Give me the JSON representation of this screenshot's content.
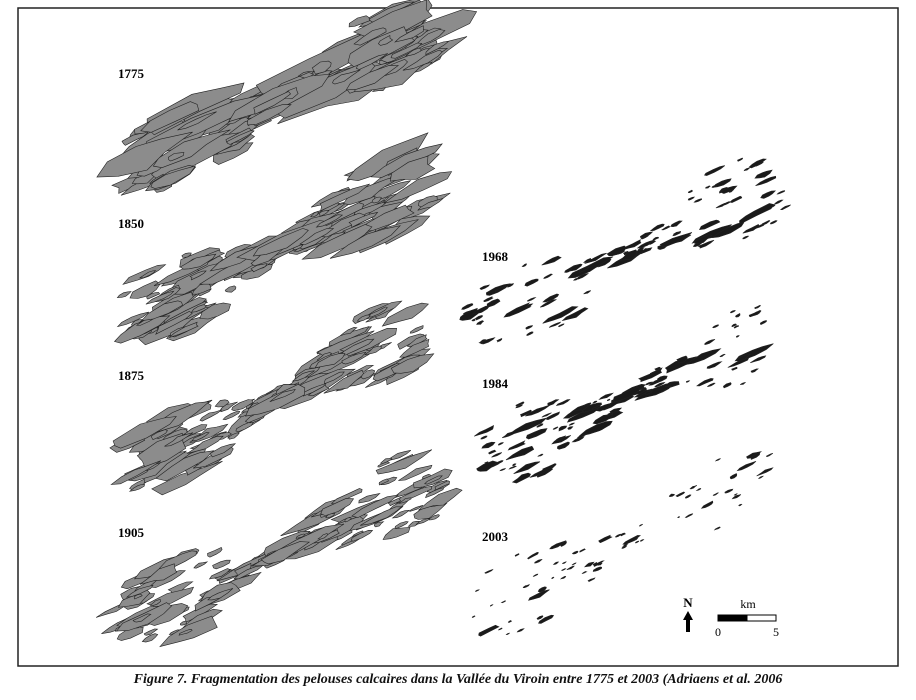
{
  "panels": [
    {
      "year": "1775"
    },
    {
      "year": "1850"
    },
    {
      "year": "1875"
    },
    {
      "year": "1905"
    },
    {
      "year": "1968"
    },
    {
      "year": "1984"
    },
    {
      "year": "2003"
    }
  ],
  "legend": {
    "north": "N",
    "unit": "km",
    "scale_start": "0",
    "scale_end": "5"
  },
  "caption": "Figure 7. Fragmentation des pelouses calcaires dans la Vallée du Viroin entre 1775 et 2003 (Adriaens et al. 2006"
}
